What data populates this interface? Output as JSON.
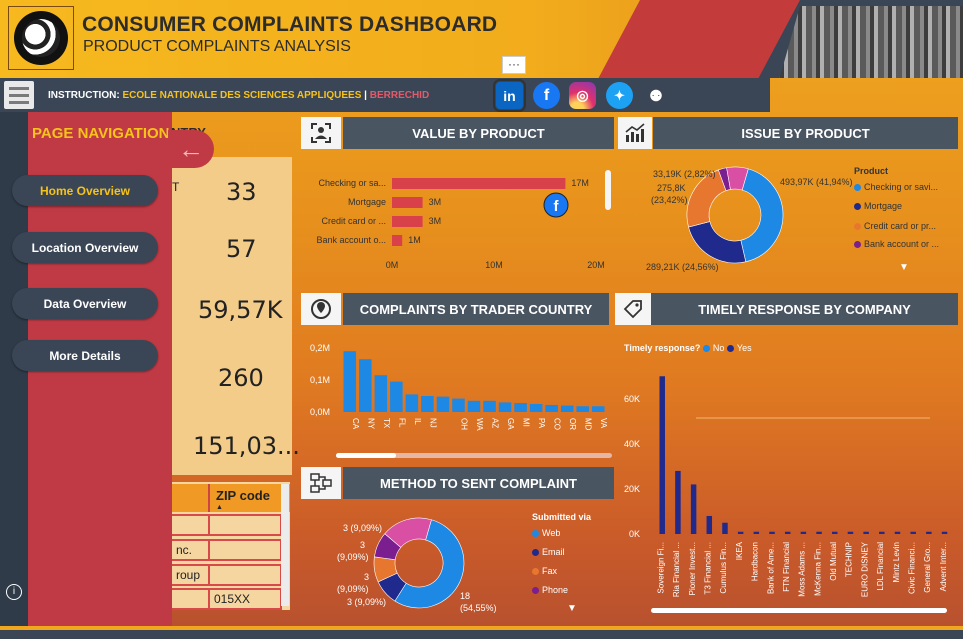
{
  "header": {
    "title": "CONSUMER COMPLAINTS DASHBOARD",
    "subtitle": "PRODUCT COMPLAINTS ANALYSIS",
    "more_label": "···"
  },
  "instruction": {
    "label": "INSTRUCTION: ",
    "school": "ECOLE NATIONALE DES SCIENCES APPLIQUEES",
    "separator": " | ",
    "city": "BERRECHID"
  },
  "social": {
    "linkedin": "in",
    "facebook": "f",
    "instagram": "◎",
    "twitter": "✦",
    "github": "⚉"
  },
  "navigation": {
    "title": "PAGE NAVIGATION",
    "hidden_fragment": "NTRY",
    "back_icon": "←",
    "items": [
      {
        "label": "Home Overview",
        "active": true
      },
      {
        "label": "Location Overview",
        "active": false
      },
      {
        "label": "Data Overview",
        "active": false
      },
      {
        "label": "More Details",
        "active": false
      }
    ],
    "info": "i"
  },
  "kpis": {
    "letter": "T",
    "values": [
      "33",
      "57",
      "59,57K",
      "260",
      "151,03..."
    ]
  },
  "zip_table": {
    "header": "ZIP code",
    "sort_icon": "▲",
    "left_cells": [
      "",
      "nc.",
      "roup",
      ""
    ],
    "right_cells": [
      "",
      "",
      "",
      "015XX"
    ]
  },
  "colors": {
    "accent_yellow": "#f6c21c",
    "nav_red": "#c03a45",
    "panel_dark": "#4a5562",
    "bar_red": "#d9414a",
    "bar_blue": "#1e88e5",
    "navy": "#1f2a8c",
    "orange": "#e7772f",
    "purple": "#7b1e8f"
  },
  "charts": {
    "value_by_product": {
      "title": "VALUE BY PRODUCT",
      "icon": "value-icon"
    },
    "issue_by_product": {
      "title": "ISSUE BY PRODUCT",
      "legend_title": "Product",
      "legend": [
        "Checking or savi...",
        "Mortgage",
        "Credit card or pr...",
        "Bank account or ..."
      ],
      "labels": [
        "493,97K (41,94%)",
        "289,21K (24,56%)",
        "275,8K",
        "(23,42%)",
        "33,19K (2,82%)"
      ],
      "expand_icon": "▼"
    },
    "complaints_by_country": {
      "title": "COMPLAINTS BY TRADER COUNTRY"
    },
    "timely_response": {
      "title": "TIMELY RESPONSE BY COMPANY",
      "legend_title": "Timely response?",
      "legend": [
        "No",
        "Yes"
      ]
    },
    "method_sent": {
      "title": "METHOD TO SENT COMPLAINT",
      "legend_title": "Submitted via",
      "legend": [
        "Web",
        "Email",
        "Fax",
        "Phone"
      ],
      "labels": [
        "3 (9,09%)",
        "3",
        "(9,09%)",
        "3",
        "(9,09%)",
        "3 (9,09%)",
        "18",
        "(54,55%)"
      ],
      "expand_icon": "▼"
    }
  },
  "chart_data": [
    {
      "type": "bar",
      "title": "VALUE BY PRODUCT",
      "orientation": "horizontal",
      "categories": [
        "Checking or sa...",
        "Mortgage",
        "Credit card or ...",
        "Bank account o..."
      ],
      "values": [
        17,
        3,
        3,
        1
      ],
      "data_labels": [
        "17M",
        "3M",
        "3M",
        "1M"
      ],
      "x_ticks": [
        "0M",
        "10M",
        "20M"
      ],
      "xlim": [
        0,
        20
      ]
    },
    {
      "type": "pie",
      "title": "ISSUE BY PRODUCT",
      "categories": [
        "Checking or savi...",
        "Mortgage",
        "Credit card or pr...",
        "Bank account or ..."
      ],
      "values": [
        41.94,
        24.56,
        23.42,
        2.82
      ],
      "other": 7.26,
      "colors": [
        "#1e88e5",
        "#1f2a8c",
        "#e7772f",
        "#7b1e8f"
      ]
    },
    {
      "type": "bar",
      "title": "COMPLAINTS BY TRADER COUNTRY",
      "categories": [
        "CA",
        "NY",
        "TX",
        "FL",
        "IL",
        "NJ",
        "",
        "OH",
        "WA",
        "AZ",
        "GA",
        "MI",
        "PA",
        "CO",
        "OR",
        "MD",
        "VA"
      ],
      "values": [
        0.19,
        0.165,
        0.115,
        0.095,
        0.055,
        0.05,
        0.048,
        0.042,
        0.035,
        0.035,
        0.03,
        0.028,
        0.025,
        0.022,
        0.02,
        0.018,
        0.018
      ],
      "y_ticks": [
        "0,2M",
        "0,1M",
        "0,0M"
      ],
      "ylim": [
        0,
        0.2
      ]
    },
    {
      "type": "bar",
      "title": "TIMELY RESPONSE BY COMPANY",
      "categories": [
        "Sovereign Fi...",
        "Ria Financial ...",
        "Pioner Invest...",
        "T3 Financial ...",
        "Cumulus Fin...",
        "IKEA",
        "Hardbacon",
        "Bank of Ame...",
        "FTN Financial",
        "Moss Adams ...",
        "McKenna Fin...",
        "Old Mutual",
        "TECHNIP",
        "EURO DISNEY",
        "LDL Financial",
        "Mintz Levin",
        "Civic Financi...",
        "General Gro...",
        "Advent Inter..."
      ],
      "series": [
        {
          "name": "No",
          "values": [
            0,
            0,
            0,
            0,
            0,
            0,
            0,
            0,
            0,
            0,
            0,
            0,
            0,
            0,
            0,
            0,
            0,
            0,
            0
          ]
        },
        {
          "name": "Yes",
          "values": [
            70,
            28,
            22,
            8,
            5,
            1,
            1,
            1,
            1,
            1,
            1,
            1,
            1,
            1,
            1,
            1,
            1,
            1,
            1
          ]
        }
      ],
      "y_ticks": [
        "60K",
        "40K",
        "20K",
        "0K"
      ],
      "ylim": [
        0,
        75
      ]
    },
    {
      "type": "pie",
      "title": "METHOD TO SENT COMPLAINT",
      "categories": [
        "Web",
        "Email",
        "Fax",
        "Phone"
      ],
      "values": [
        54.55,
        9.09,
        9.09,
        9.09
      ],
      "other": 18.18,
      "colors": [
        "#1e88e5",
        "#1f2a8c",
        "#e7772f",
        "#7b1e8f"
      ]
    }
  ]
}
